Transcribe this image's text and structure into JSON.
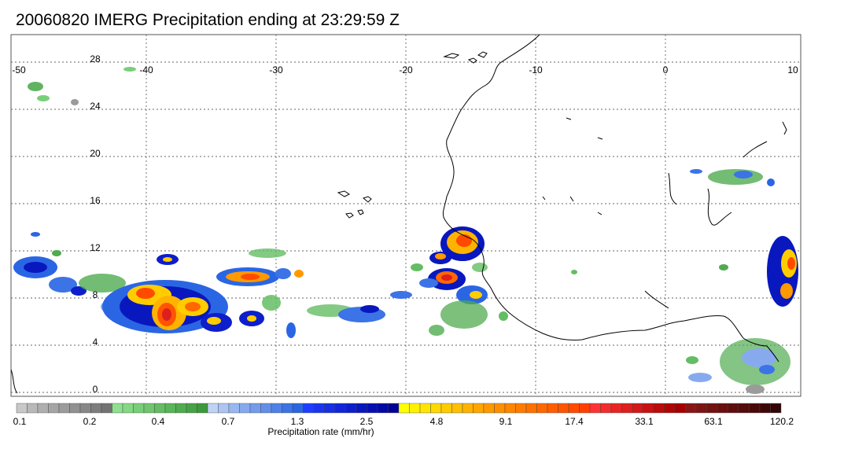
{
  "title": "20060820 IMERG Precipitation ending at 23:29:59 Z",
  "map": {
    "lon_labels": [
      "-50",
      "-40",
      "-30",
      "-20",
      "-10",
      "0",
      "10"
    ],
    "lat_labels": [
      "28",
      "24",
      "20",
      "16",
      "12",
      "8",
      "4",
      "0"
    ]
  },
  "colorbar": {
    "title": "Precipitation rate (mm/hr)",
    "tick_labels": [
      "0.1",
      "0.2",
      "0.4",
      "0.7",
      "1.3",
      "2.5",
      "4.8",
      "9.1",
      "17.4",
      "33.1",
      "63.1",
      "120.2"
    ],
    "colors": [
      "#c8c8c8",
      "#b9b9b9",
      "#afafaf",
      "#a5a5a5",
      "#9b9b9b",
      "#919191",
      "#878787",
      "#7d7d7d",
      "#737373",
      "#8fe08f",
      "#84d884",
      "#79cf79",
      "#6fc66f",
      "#64bd64",
      "#5ab45a",
      "#50ab50",
      "#46a246",
      "#3c993c",
      "#bfd3f5",
      "#acc5f3",
      "#99b8f1",
      "#87aaef",
      "#749cec",
      "#618fea",
      "#4f81e8",
      "#3c73e6",
      "#2a66e4",
      "#1f3dff",
      "#1a35f2",
      "#162ee5",
      "#1126d8",
      "#0d1fcb",
      "#0818be",
      "#0610b1",
      "#0309a4",
      "#000297",
      "#ffff00",
      "#fff200",
      "#ffe600",
      "#ffd900",
      "#ffcc00",
      "#ffc000",
      "#ffb300",
      "#ffa600",
      "#ff9900",
      "#ff9000",
      "#ff8600",
      "#ff7c00",
      "#ff7200",
      "#ff6800",
      "#ff5e00",
      "#ff5400",
      "#ff4a00",
      "#ff4000",
      "#ff3333",
      "#f42c2c",
      "#e82525",
      "#dd1f1f",
      "#d21818",
      "#c61212",
      "#bb0b0b",
      "#b00505",
      "#a40000",
      "#8a1515",
      "#7f1313",
      "#741111",
      "#690f0f",
      "#5e0d0d",
      "#540b0b",
      "#490909",
      "#3e0707",
      "#330505"
    ]
  }
}
